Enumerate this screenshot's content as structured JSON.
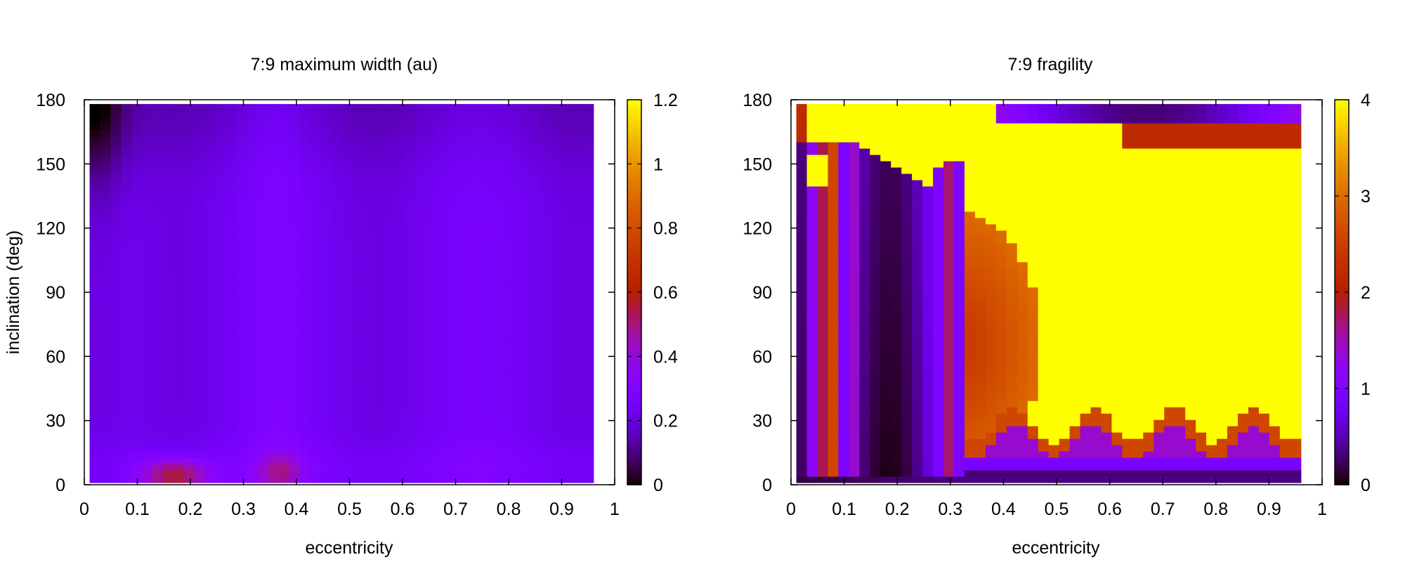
{
  "chart_data": [
    {
      "type": "heatmap",
      "title": "7:9 maximum width (au)",
      "xlabel": "eccentricity",
      "ylabel": "inclination (deg)",
      "xlim": [
        0,
        1
      ],
      "ylim": [
        0,
        180
      ],
      "x_ticks": [
        "0",
        "0.1",
        "0.2",
        "0.3",
        "0.4",
        "0.5",
        "0.6",
        "0.7",
        "0.8",
        "0.9",
        "1"
      ],
      "y_ticks": [
        "0",
        "30",
        "60",
        "90",
        "120",
        "150",
        "180"
      ],
      "data_extent": {
        "x": [
          0.01,
          0.96
        ],
        "y": [
          1,
          178
        ]
      },
      "colorbar": {
        "range": [
          0,
          1.2
        ],
        "ticks": [
          "0",
          "0.2",
          "0.4",
          "0.6",
          "0.8",
          "1",
          "1.2"
        ],
        "palette": "gnuplot"
      },
      "grid": false,
      "description_of_values": {
        "typical_value_range": [
          0.05,
          0.6
        ],
        "low_region": "dark near top-left (e≈0.02, i≈178) value ≈0.05",
        "high_region": "reddish near e≈0.17, i≈5 value ≈0.55",
        "background": "mostly ≈0.2 – 0.28"
      }
    },
    {
      "type": "heatmap",
      "title": "7:9 fragility",
      "xlabel": "eccentricity",
      "ylabel": "",
      "xlim": [
        0,
        1
      ],
      "ylim": [
        0,
        180
      ],
      "x_ticks": [
        "0",
        "0.1",
        "0.2",
        "0.3",
        "0.4",
        "0.5",
        "0.6",
        "0.7",
        "0.8",
        "0.9",
        "1"
      ],
      "y_ticks": [
        "0",
        "30",
        "60",
        "90",
        "120",
        "150",
        "180"
      ],
      "data_extent": {
        "x": [
          0.01,
          0.96
        ],
        "y": [
          1,
          178
        ]
      },
      "colorbar": {
        "range": [
          0,
          4
        ],
        "ticks": [
          "0",
          "1",
          "2",
          "3",
          "4"
        ],
        "palette": "gnuplot"
      },
      "grid": false,
      "description_of_values": {
        "saturated_region": "value 4 (yellow) for e > ~0.33 between i≈25 and i≈165, and top band for e < ~0.3",
        "dark_column": "e≈0.12–0.25 value ≈0.1–0.5",
        "arc_region": "orange arc e≈0.3–0.47 value ≈2.5–3",
        "bottom_band": "i < 25 values ≈0.3–2.5 with wavy boundary"
      }
    }
  ]
}
